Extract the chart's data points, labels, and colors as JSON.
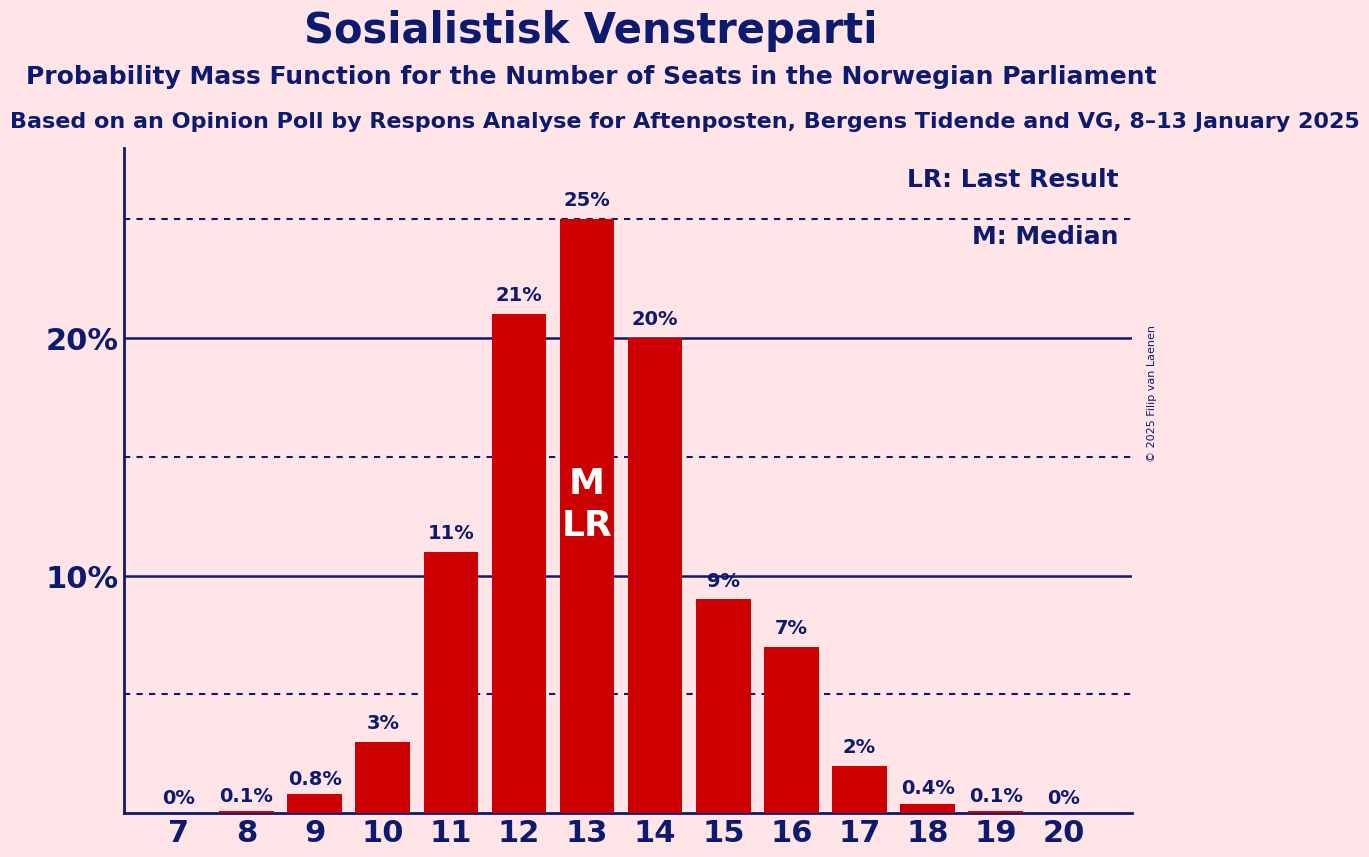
{
  "title": "Sosialistisk Venstreparti",
  "subtitle": "Probability Mass Function for the Number of Seats in the Norwegian Parliament",
  "subtitle2": "Based on an Opinion Poll by Respons Analyse for Aftenposten, Bergens Tidende and VG, 8–13 January 2025",
  "copyright": "© 2025 Filip van Laenen",
  "seats": [
    7,
    8,
    9,
    10,
    11,
    12,
    13,
    14,
    15,
    16,
    17,
    18,
    19,
    20
  ],
  "probabilities": [
    0.0,
    0.1,
    0.8,
    3.0,
    11.0,
    21.0,
    25.0,
    20.0,
    9.0,
    7.0,
    2.0,
    0.4,
    0.1,
    0.0
  ],
  "bar_color": "#CC0000",
  "background_color": "#FFE4E8",
  "title_color": "#0D1B6E",
  "bar_label_color": "#0D1B6E",
  "median_seat": 13,
  "last_result_seat": 13,
  "legend_lr": "LR: Last Result",
  "legend_m": "M: Median",
  "ylim": [
    0,
    28
  ],
  "solid_grid_lines": [
    10,
    20
  ],
  "dotted_grid_lines": [
    5,
    15,
    25
  ],
  "bar_label_fontsize": 14,
  "title_fontsize": 30,
  "subtitle_fontsize": 18,
  "subtitle2_fontsize": 16,
  "tick_fontsize": 22,
  "legend_fontsize": 18,
  "mlr_fontsize": 26
}
